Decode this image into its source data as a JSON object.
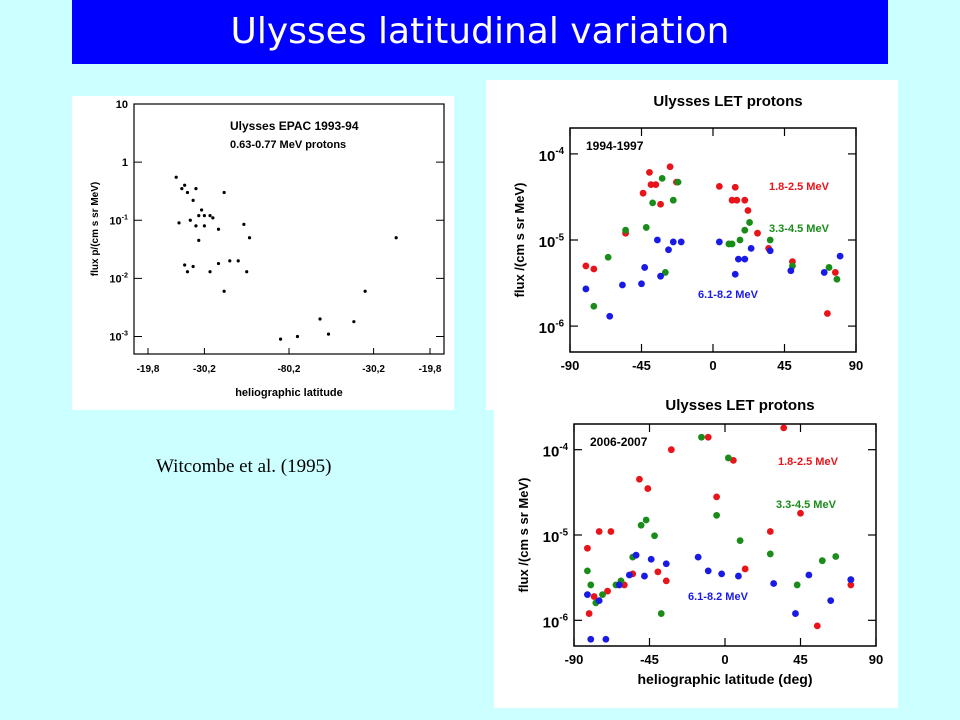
{
  "title": "Ulysses latitudinal variation",
  "citation": "Witcombe et al. (1995)",
  "colors": {
    "background": "#ccffff",
    "title_bar": "#0000ff",
    "title_text": "#ffffff",
    "red": "#e8141a",
    "green": "#1a8c1a",
    "blue": "#1a1ae6"
  },
  "chart_data": [
    {
      "type": "scatter",
      "title": "Ulysses EPAC 1993-94",
      "subtitle": "0.63-0.77 MeV protons",
      "xlabel": "heliographic latitude",
      "ylabel": "flux  p/(cm s sr MeV)",
      "yscale": "log",
      "ylim": [
        0.0005,
        10
      ],
      "xlim": [
        0,
        100
      ],
      "x_ticks": [
        {
          "pos": 0,
          "label": "-19,8"
        },
        {
          "pos": 20,
          "label": "-30,2"
        },
        {
          "pos": 50,
          "label": "-80,2"
        },
        {
          "pos": 80,
          "label": "-30,2"
        },
        {
          "pos": 100,
          "label": "-19,8"
        }
      ],
      "y_ticks": [
        {
          "value": 10,
          "label": "10"
        },
        {
          "value": 1,
          "label": "1"
        },
        {
          "value": 0.1,
          "label": "10",
          "exp": "-1"
        },
        {
          "value": 0.01,
          "label": "10",
          "exp": "-2"
        },
        {
          "value": 0.001,
          "label": "10",
          "exp": "-3"
        }
      ],
      "points": [
        [
          10,
          0.55
        ],
        [
          12,
          0.35
        ],
        [
          13,
          0.4
        ],
        [
          14,
          0.3
        ],
        [
          16,
          0.22
        ],
        [
          17,
          0.35
        ],
        [
          11,
          0.09
        ],
        [
          15,
          0.1
        ],
        [
          17,
          0.08
        ],
        [
          18,
          0.12
        ],
        [
          19,
          0.15
        ],
        [
          20,
          0.12
        ],
        [
          22,
          0.12
        ],
        [
          23,
          0.11
        ],
        [
          25,
          0.07
        ],
        [
          27,
          0.3
        ],
        [
          13,
          0.017
        ],
        [
          14,
          0.013
        ],
        [
          16,
          0.016
        ],
        [
          18,
          0.045
        ],
        [
          20,
          0.08
        ],
        [
          22,
          0.013
        ],
        [
          25,
          0.018
        ],
        [
          27,
          0.006
        ],
        [
          29,
          0.02
        ],
        [
          32,
          0.02
        ],
        [
          34,
          0.085
        ],
        [
          35,
          0.013
        ],
        [
          36,
          0.05
        ],
        [
          47,
          0.0009
        ],
        [
          53,
          0.001
        ],
        [
          61,
          0.002
        ],
        [
          64,
          0.0011
        ],
        [
          73,
          0.0018
        ],
        [
          77,
          0.006
        ],
        [
          88,
          0.05
        ]
      ]
    },
    {
      "type": "scatter",
      "title": "Ulysses LET protons",
      "annotation": "1994-1997",
      "xlabel": "",
      "ylabel": "flux  /(cm s sr MeV)",
      "yscale": "log",
      "xlim": [
        -90,
        90
      ],
      "ylim": [
        5e-07,
        0.0002
      ],
      "x_ticks": [
        -90,
        -45,
        0,
        45,
        90
      ],
      "y_ticks": [
        {
          "value": 0.0001,
          "label": "10",
          "exp": "-4"
        },
        {
          "value": 1e-05,
          "label": "10",
          "exp": "-5"
        },
        {
          "value": 1e-06,
          "label": "10",
          "exp": "-6"
        }
      ],
      "series": [
        {
          "name": "1.8-2.5 MeV",
          "color": "red",
          "points": [
            [
              -80,
              5e-06
            ],
            [
              -75,
              4.6e-06
            ],
            [
              -55,
              1.2e-05
            ],
            [
              -44,
              3.5e-05
            ],
            [
              -40,
              6.1e-05
            ],
            [
              -39,
              4.4e-05
            ],
            [
              -36,
              4.4e-05
            ],
            [
              -33,
              2.6e-05
            ],
            [
              -27,
              7.1e-05
            ],
            [
              -23,
              4.7e-05
            ],
            [
              4,
              4.2e-05
            ],
            [
              12,
              2.9e-05
            ],
            [
              14,
              4.1e-05
            ],
            [
              15,
              2.9e-05
            ],
            [
              20,
              2.9e-05
            ],
            [
              22,
              2.2e-05
            ],
            [
              28,
              1.2e-05
            ],
            [
              35,
              8e-06
            ],
            [
              50,
              5.6e-06
            ],
            [
              72,
              1.4e-06
            ],
            [
              77,
              4.2e-06
            ]
          ]
        },
        {
          "name": "3.3-4.5 MeV",
          "color": "green",
          "points": [
            [
              -75,
              1.7e-06
            ],
            [
              -66,
              6.3e-06
            ],
            [
              -55,
              1.3e-05
            ],
            [
              -42,
              1.4e-05
            ],
            [
              -38,
              2.7e-05
            ],
            [
              -32,
              5.2e-05
            ],
            [
              -30,
              4.2e-06
            ],
            [
              -25,
              2.9e-05
            ],
            [
              -22,
              4.7e-05
            ],
            [
              10,
              9e-06
            ],
            [
              12,
              9e-06
            ],
            [
              17,
              1e-05
            ],
            [
              20,
              1.3e-05
            ],
            [
              23,
              1.6e-05
            ],
            [
              36,
              1e-05
            ],
            [
              50,
              5e-06
            ],
            [
              73,
              4.8e-06
            ],
            [
              78,
              3.5e-06
            ]
          ]
        },
        {
          "name": "6.1-8.2 MeV",
          "color": "blue",
          "points": [
            [
              -80,
              2.7e-06
            ],
            [
              -65,
              1.3e-06
            ],
            [
              -57,
              3e-06
            ],
            [
              -45,
              3.1e-06
            ],
            [
              -43,
              4.8e-06
            ],
            [
              -35,
              1e-05
            ],
            [
              -33,
              3.8e-06
            ],
            [
              -28,
              7.7e-06
            ],
            [
              -25,
              9.5e-06
            ],
            [
              -20,
              9.5e-06
            ],
            [
              4,
              9.5e-06
            ],
            [
              14,
              4e-06
            ],
            [
              16,
              6e-06
            ],
            [
              20,
              6e-06
            ],
            [
              24,
              8e-06
            ],
            [
              36,
              7.5e-06
            ],
            [
              49,
              4.4e-06
            ],
            [
              70,
              4.2e-06
            ],
            [
              80,
              6.5e-06
            ]
          ]
        }
      ]
    },
    {
      "type": "scatter",
      "title": "Ulysses LET protons",
      "annotation": "2006-2007",
      "xlabel": "heliographic latitude (deg)",
      "ylabel": "flux  /(cm s sr MeV)",
      "yscale": "log",
      "xlim": [
        -90,
        90
      ],
      "ylim": [
        5e-07,
        0.0002
      ],
      "x_ticks": [
        -90,
        -45,
        0,
        45,
        90
      ],
      "y_ticks": [
        {
          "value": 0.0001,
          "label": "10",
          "exp": "-4"
        },
        {
          "value": 1e-05,
          "label": "10",
          "exp": "-5"
        },
        {
          "value": 1e-06,
          "label": "10",
          "exp": "-6"
        }
      ],
      "series": [
        {
          "name": "1.8-2.5 MeV",
          "color": "red",
          "points": [
            [
              -82,
              7e-06
            ],
            [
              -81,
              1.2e-06
            ],
            [
              -78,
              1.9e-06
            ],
            [
              -75,
              1.1e-05
            ],
            [
              -70,
              2.2e-06
            ],
            [
              -68,
              1.1e-05
            ],
            [
              -60,
              2.6e-06
            ],
            [
              -55,
              3.5e-06
            ],
            [
              -51,
              4.5e-05
            ],
            [
              -46,
              3.5e-05
            ],
            [
              -40,
              3.7e-06
            ],
            [
              -35,
              2.9e-06
            ],
            [
              -32,
              0.0001
            ],
            [
              -10,
              0.00014
            ],
            [
              -5,
              2.8e-05
            ],
            [
              5,
              7.5e-05
            ],
            [
              12,
              4e-06
            ],
            [
              27,
              1.1e-05
            ],
            [
              35,
              0.00018
            ],
            [
              45,
              1.8e-05
            ],
            [
              55,
              8.6e-07
            ],
            [
              75,
              2.6e-06
            ]
          ]
        },
        {
          "name": "3.3-4.5 MeV",
          "color": "green",
          "points": [
            [
              -82,
              3.8e-06
            ],
            [
              -80,
              2.6e-06
            ],
            [
              -77,
              1.6e-06
            ],
            [
              -73,
              2e-06
            ],
            [
              -65,
              2.6e-06
            ],
            [
              -62,
              2.9e-06
            ],
            [
              -55,
              5.5e-06
            ],
            [
              -50,
              1.3e-05
            ],
            [
              -47,
              1.5e-05
            ],
            [
              -42,
              9.8e-06
            ],
            [
              -38,
              1.2e-06
            ],
            [
              -14,
              0.00014
            ],
            [
              -5,
              1.7e-05
            ],
            [
              2,
              8e-05
            ],
            [
              9,
              8.6e-06
            ],
            [
              27,
              6e-06
            ],
            [
              43,
              2.6e-06
            ],
            [
              58,
              5e-06
            ],
            [
              66,
              5.6e-06
            ],
            [
              75,
              3e-06
            ]
          ]
        },
        {
          "name": "6.1-8.2 MeV",
          "color": "blue",
          "points": [
            [
              -82,
              2e-06
            ],
            [
              -80,
              6e-07
            ],
            [
              -75,
              1.7e-06
            ],
            [
              -71,
              6e-07
            ],
            [
              -63,
              2.6e-06
            ],
            [
              -57,
              3.4e-06
            ],
            [
              -53,
              5.8e-06
            ],
            [
              -48,
              3.3e-06
            ],
            [
              -44,
              5.2e-06
            ],
            [
              -35,
              4.6e-06
            ],
            [
              -16,
              5.5e-06
            ],
            [
              -10,
              3.8e-06
            ],
            [
              -2,
              3.5e-06
            ],
            [
              8,
              3.3e-06
            ],
            [
              29,
              2.7e-06
            ],
            [
              42,
              1.2e-06
            ],
            [
              50,
              3.4e-06
            ],
            [
              63,
              1.7e-06
            ],
            [
              75,
              3e-06
            ]
          ]
        }
      ]
    }
  ]
}
